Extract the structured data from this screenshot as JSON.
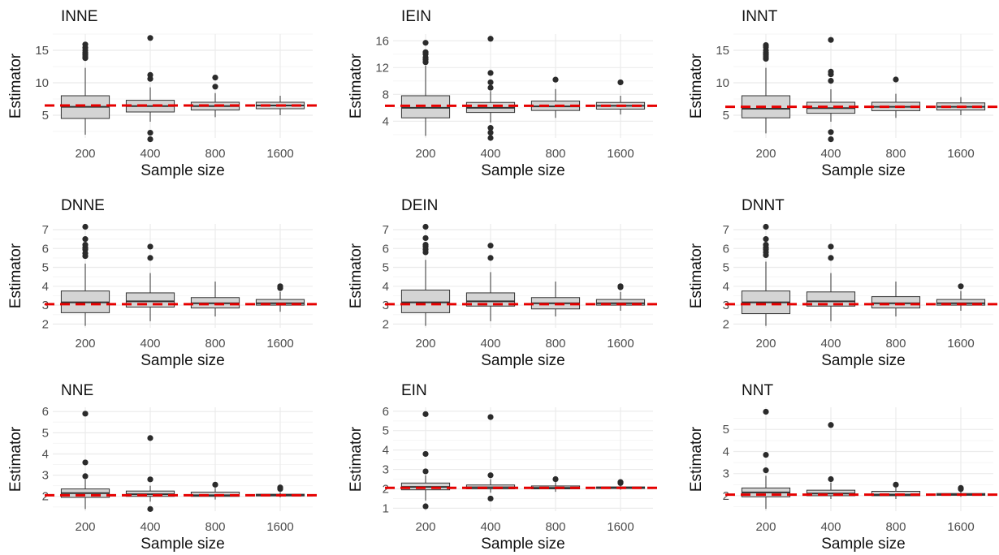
{
  "chart_data": [
    {
      "type": "boxplot",
      "title": "INNE",
      "xlabel": "Sample size",
      "ylabel": "Estimator",
      "categories": [
        "200",
        "400",
        "800",
        "1600"
      ],
      "ylim": [
        1.5,
        17.5
      ],
      "yticks": [
        5,
        10,
        15
      ],
      "reference_line": 6.5,
      "grid": true,
      "boxes": [
        {
          "low": 2.0,
          "q1": 4.5,
          "median": 6.3,
          "q3": 8.0,
          "high": 12.3,
          "outliers": [
            13.8,
            14.0,
            14.3,
            14.6,
            15.0,
            15.4,
            15.9
          ]
        },
        {
          "low": 4.0,
          "q1": 5.5,
          "median": 6.4,
          "q3": 7.3,
          "high": 9.3,
          "outliers": [
            1.3,
            2.3,
            10.6,
            11.2,
            16.9
          ]
        },
        {
          "low": 4.7,
          "q1": 5.8,
          "median": 6.4,
          "q3": 7.0,
          "high": 8.4,
          "outliers": [
            9.4,
            10.8
          ]
        },
        {
          "low": 5.0,
          "q1": 6.0,
          "median": 6.5,
          "q3": 7.0,
          "high": 8.0,
          "outliers": []
        }
      ]
    },
    {
      "type": "boxplot",
      "title": "IEIN",
      "xlabel": "Sample size",
      "ylabel": "Estimator",
      "categories": [
        "200",
        "400",
        "800",
        "1600"
      ],
      "ylim": [
        1.5,
        17.0
      ],
      "yticks": [
        4,
        8,
        12,
        16
      ],
      "reference_line": 6.3,
      "grid": true,
      "boxes": [
        {
          "low": 1.8,
          "q1": 4.5,
          "median": 6.0,
          "q3": 7.8,
          "high": 12.3,
          "outliers": [
            12.8,
            13.2,
            13.5,
            14.0,
            14.3,
            15.7
          ]
        },
        {
          "low": 3.8,
          "q1": 5.3,
          "median": 6.0,
          "q3": 6.8,
          "high": 8.5,
          "outliers": [
            1.5,
            2.3,
            3.0,
            9.0,
            9.8,
            11.2,
            16.3
          ]
        },
        {
          "low": 4.5,
          "q1": 5.6,
          "median": 6.2,
          "q3": 7.0,
          "high": 8.8,
          "outliers": [
            10.2
          ]
        },
        {
          "low": 5.0,
          "q1": 5.8,
          "median": 6.3,
          "q3": 6.8,
          "high": 7.8,
          "outliers": [
            9.8
          ]
        }
      ]
    },
    {
      "type": "boxplot",
      "title": "INNT",
      "xlabel": "Sample size",
      "ylabel": "Estimator",
      "categories": [
        "200",
        "400",
        "800",
        "1600"
      ],
      "ylim": [
        1.5,
        17.5
      ],
      "yticks": [
        5,
        10,
        15
      ],
      "reference_line": 6.3,
      "grid": true,
      "boxes": [
        {
          "low": 2.2,
          "q1": 4.6,
          "median": 6.0,
          "q3": 8.0,
          "high": 12.3,
          "outliers": [
            13.7,
            14.0,
            14.3,
            14.6,
            15.0,
            15.5,
            15.8
          ]
        },
        {
          "low": 4.0,
          "q1": 5.3,
          "median": 6.1,
          "q3": 7.0,
          "high": 9.0,
          "outliers": [
            1.3,
            2.4,
            10.3,
            11.3,
            11.7,
            16.6
          ]
        },
        {
          "low": 4.6,
          "q1": 5.7,
          "median": 6.3,
          "q3": 7.0,
          "high": 8.3,
          "outliers": [
            10.5
          ]
        },
        {
          "low": 5.0,
          "q1": 5.8,
          "median": 6.3,
          "q3": 6.9,
          "high": 7.8,
          "outliers": []
        }
      ]
    },
    {
      "type": "boxplot",
      "title": "DNNE",
      "xlabel": "Sample size",
      "ylabel": "Estimator",
      "categories": [
        "200",
        "400",
        "800",
        "1600"
      ],
      "ylim": [
        1.8,
        7.3
      ],
      "yticks": [
        2,
        3,
        4,
        5,
        6,
        7
      ],
      "reference_line": 3.05,
      "grid": true,
      "boxes": [
        {
          "low": 1.9,
          "q1": 2.6,
          "median": 3.15,
          "q3": 3.75,
          "high": 5.2,
          "outliers": [
            5.6,
            5.75,
            5.95,
            6.05,
            6.2,
            6.5,
            7.15
          ]
        },
        {
          "low": 2.15,
          "q1": 2.9,
          "median": 3.2,
          "q3": 3.65,
          "high": 4.7,
          "outliers": [
            5.5,
            6.1
          ]
        },
        {
          "low": 2.4,
          "q1": 2.85,
          "median": 3.1,
          "q3": 3.4,
          "high": 4.25,
          "outliers": []
        },
        {
          "low": 2.65,
          "q1": 3.0,
          "median": 3.1,
          "q3": 3.3,
          "high": 3.7,
          "outliers": [
            3.9,
            4.0
          ]
        }
      ]
    },
    {
      "type": "boxplot",
      "title": "DEIN",
      "xlabel": "Sample size",
      "ylabel": "Estimator",
      "categories": [
        "200",
        "400",
        "800",
        "1600"
      ],
      "ylim": [
        1.8,
        7.3
      ],
      "yticks": [
        2,
        3,
        4,
        5,
        6,
        7
      ],
      "reference_line": 3.05,
      "grid": true,
      "boxes": [
        {
          "low": 1.9,
          "q1": 2.6,
          "median": 3.15,
          "q3": 3.8,
          "high": 5.4,
          "outliers": [
            5.8,
            5.95,
            6.1,
            6.2,
            6.55,
            7.15
          ]
        },
        {
          "low": 2.15,
          "q1": 2.95,
          "median": 3.2,
          "q3": 3.65,
          "high": 4.75,
          "outliers": [
            5.5,
            6.15
          ]
        },
        {
          "low": 2.4,
          "q1": 2.8,
          "median": 3.1,
          "q3": 3.4,
          "high": 4.25,
          "outliers": []
        },
        {
          "low": 2.7,
          "q1": 3.0,
          "median": 3.1,
          "q3": 3.3,
          "high": 3.7,
          "outliers": [
            3.95,
            4.0
          ]
        }
      ]
    },
    {
      "type": "boxplot",
      "title": "DNNT",
      "xlabel": "Sample size",
      "ylabel": "Estimator",
      "categories": [
        "200",
        "400",
        "800",
        "1600"
      ],
      "ylim": [
        1.8,
        7.3
      ],
      "yticks": [
        2,
        3,
        4,
        5,
        6,
        7
      ],
      "reference_line": 3.05,
      "grid": true,
      "boxes": [
        {
          "low": 1.9,
          "q1": 2.55,
          "median": 3.15,
          "q3": 3.75,
          "high": 5.3,
          "outliers": [
            5.65,
            5.8,
            5.95,
            6.05,
            6.2,
            6.5,
            7.15
          ]
        },
        {
          "low": 2.15,
          "q1": 2.95,
          "median": 3.2,
          "q3": 3.7,
          "high": 4.7,
          "outliers": [
            5.5,
            6.1
          ]
        },
        {
          "low": 2.4,
          "q1": 2.85,
          "median": 3.1,
          "q3": 3.45,
          "high": 4.25,
          "outliers": []
        },
        {
          "low": 2.7,
          "q1": 3.0,
          "median": 3.1,
          "q3": 3.3,
          "high": 3.75,
          "outliers": [
            4.0
          ]
        }
      ]
    },
    {
      "type": "boxplot",
      "title": "NNE",
      "xlabel": "Sample size",
      "ylabel": "Estimator",
      "categories": [
        "200",
        "400",
        "800",
        "1600"
      ],
      "ylim": [
        1.3,
        6.2
      ],
      "yticks": [
        2,
        3,
        4,
        5,
        6
      ],
      "reference_line": 2.05,
      "grid": true,
      "boxes": [
        {
          "low": 1.4,
          "q1": 1.95,
          "median": 2.15,
          "q3": 2.35,
          "high": 2.8,
          "outliers": [
            2.95,
            3.6,
            5.9
          ]
        },
        {
          "low": 1.75,
          "q1": 2.0,
          "median": 2.1,
          "q3": 2.25,
          "high": 2.5,
          "outliers": [
            1.4,
            2.8,
            4.75
          ]
        },
        {
          "low": 1.85,
          "q1": 2.0,
          "median": 2.05,
          "q3": 2.2,
          "high": 2.4,
          "outliers": [
            2.55
          ]
        },
        {
          "low": 1.95,
          "q1": 2.02,
          "median": 2.05,
          "q3": 2.1,
          "high": 2.2,
          "outliers": [
            2.35,
            2.42
          ]
        }
      ]
    },
    {
      "type": "boxplot",
      "title": "EIN",
      "xlabel": "Sample size",
      "ylabel": "Estimator",
      "categories": [
        "200",
        "400",
        "800",
        "1600"
      ],
      "ylim": [
        0.85,
        6.2
      ],
      "yticks": [
        1,
        2,
        3,
        4,
        5,
        6
      ],
      "reference_line": 2.05,
      "grid": true,
      "boxes": [
        {
          "low": 1.4,
          "q1": 1.95,
          "median": 2.1,
          "q3": 2.3,
          "high": 2.7,
          "outliers": [
            1.1,
            2.9,
            3.8,
            5.85
          ]
        },
        {
          "low": 1.8,
          "q1": 2.0,
          "median": 2.08,
          "q3": 2.2,
          "high": 2.5,
          "outliers": [
            1.5,
            2.7,
            5.7
          ]
        },
        {
          "low": 1.85,
          "q1": 2.0,
          "median": 2.05,
          "q3": 2.15,
          "high": 2.35,
          "outliers": [
            2.5
          ]
        },
        {
          "low": 1.95,
          "q1": 2.02,
          "median": 2.05,
          "q3": 2.1,
          "high": 2.2,
          "outliers": [
            2.3,
            2.35
          ]
        }
      ]
    },
    {
      "type": "boxplot",
      "title": "NNT",
      "xlabel": "Sample size",
      "ylabel": "Estimator",
      "categories": [
        "200",
        "400",
        "800",
        "1600"
      ],
      "ylim": [
        1.3,
        6.0
      ],
      "yticks": [
        2,
        3,
        4,
        5
      ],
      "reference_line": 2.05,
      "grid": true,
      "boxes": [
        {
          "low": 1.4,
          "q1": 1.95,
          "median": 2.15,
          "q3": 2.35,
          "high": 2.9,
          "outliers": [
            3.15,
            3.85,
            5.8
          ]
        },
        {
          "low": 1.85,
          "q1": 2.0,
          "median": 2.1,
          "q3": 2.25,
          "high": 2.6,
          "outliers": [
            2.75,
            5.2
          ]
        },
        {
          "low": 1.85,
          "q1": 2.0,
          "median": 2.05,
          "q3": 2.2,
          "high": 2.4,
          "outliers": [
            2.5
          ]
        },
        {
          "low": 1.95,
          "q1": 2.02,
          "median": 2.05,
          "q3": 2.1,
          "high": 2.2,
          "outliers": [
            2.3,
            2.35
          ]
        }
      ]
    }
  ],
  "colors": {
    "box_fill": "#d4d4d4",
    "box_stroke": "#333333",
    "outlier": "#2b2b2b",
    "reference_line": "#e60000",
    "grid_major": "#ebebeb",
    "grid_minor": "#f5f5f5"
  }
}
